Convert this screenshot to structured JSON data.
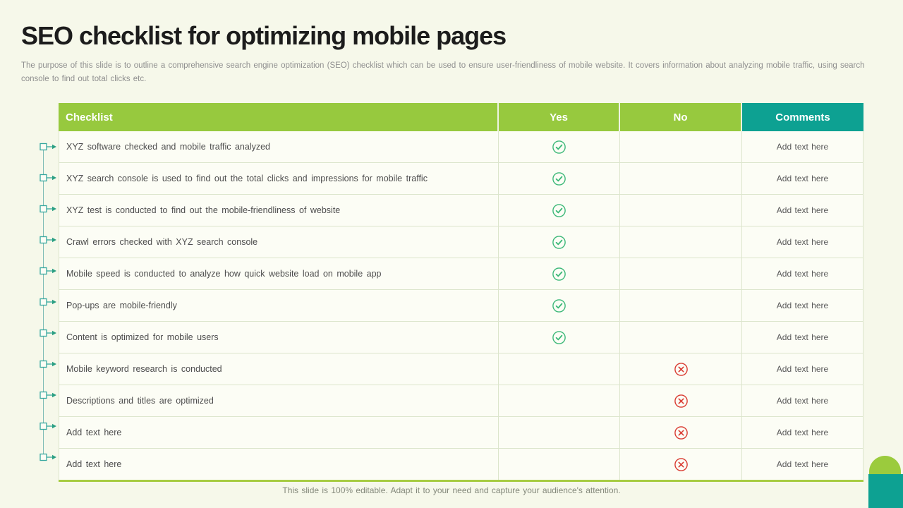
{
  "page": {
    "title": "SEO checklist for optimizing mobile pages",
    "subtitle": "The purpose of this slide is to outline a comprehensive search engine optimization (SEO) checklist which can be used to ensure user-friendliness of mobile website. It covers information about analyzing mobile traffic, using search console to find out total clicks etc.",
    "footer": "This slide is 100% editable. Adapt it to your need and capture your audience's attention."
  },
  "table": {
    "headers": {
      "checklist": "Checklist",
      "yes": "Yes",
      "no": "No",
      "comments": "Comments"
    },
    "rows": [
      {
        "label": "XYZ software checked and mobile traffic analyzed",
        "yes": true,
        "no": false,
        "comment": "Add text here"
      },
      {
        "label": "XYZ search console is used to find out the total clicks and impressions for mobile traffic",
        "yes": true,
        "no": false,
        "comment": "Add text here"
      },
      {
        "label": "XYZ test is conducted to find out the mobile-friendliness  of website",
        "yes": true,
        "no": false,
        "comment": "Add text here"
      },
      {
        "label": "Crawl errors checked with XYZ search console",
        "yes": true,
        "no": false,
        "comment": "Add text here"
      },
      {
        "label": "Mobile speed is conducted to analyze how quick website load on mobile app",
        "yes": true,
        "no": false,
        "comment": "Add text here"
      },
      {
        "label": "Pop-ups are mobile-friendly",
        "yes": true,
        "no": false,
        "comment": "Add text here"
      },
      {
        "label": "Content is optimized for mobile users",
        "yes": true,
        "no": false,
        "comment": "Add text here"
      },
      {
        "label": "Mobile keyword research is conducted",
        "yes": false,
        "no": true,
        "comment": "Add text here"
      },
      {
        "label": "Descriptions and titles are optimized",
        "yes": false,
        "no": true,
        "comment": "Add text here"
      },
      {
        "label": "Add text here",
        "yes": false,
        "no": true,
        "comment": "Add text here"
      },
      {
        "label": "Add text here",
        "yes": false,
        "no": true,
        "comment": "Add text here"
      }
    ]
  },
  "icons": {
    "yes_icon": "check-circle-icon",
    "no_icon": "cross-circle-icon",
    "row_marker": "square-arrow-icon"
  },
  "colors": {
    "header_green": "#97c93e",
    "header_teal": "#0da192",
    "check_green": "#3cb878",
    "cross_red": "#d93a30",
    "marker_teal": "#35a79f",
    "table_bottom_border": "#a7cc43",
    "background": "#f6f8ea"
  }
}
